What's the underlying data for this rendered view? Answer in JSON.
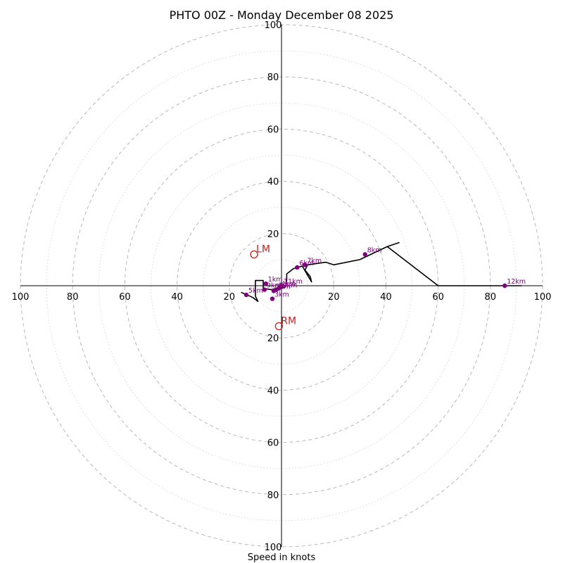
{
  "chart_data": {
    "type": "hodograph",
    "title": "PHTO 00Z - Monday December 08 2025",
    "xlabel": "Speed in knots",
    "max_speed": 100,
    "ring_step": 10,
    "axis_ticks": [
      20,
      40,
      60,
      80,
      100
    ],
    "axis_tick_labels": [
      "20",
      "40",
      "60",
      "80",
      "100"
    ],
    "colors": {
      "hodo_line": "#000000",
      "height_marker": "#800080",
      "storm_motion": "#c41e1e",
      "grid": "#b0b0b0"
    },
    "hodograph_uv": [
      [
        -15.5,
        -2.5
      ],
      [
        -11.0,
        -4.5
      ],
      [
        -9.0,
        -6.0
      ],
      [
        -10.0,
        -4.0
      ],
      [
        -10.0,
        2.0
      ],
      [
        -7.0,
        2.0
      ],
      [
        -7.0,
        -1.0
      ],
      [
        -4.0,
        -1.5
      ],
      [
        -2.0,
        -1.0
      ],
      [
        0.0,
        -1.0
      ],
      [
        1.5,
        -0.5
      ],
      [
        2.0,
        2.0
      ],
      [
        2.0,
        4.5
      ],
      [
        4.5,
        6.5
      ],
      [
        6.0,
        7.0
      ],
      [
        8.0,
        7.5
      ],
      [
        10.0,
        4.0
      ],
      [
        11.5,
        1.5
      ],
      [
        11.0,
        3.5
      ],
      [
        9.0,
        6.0
      ],
      [
        10.0,
        8.0
      ],
      [
        17.0,
        9.0
      ],
      [
        20.0,
        8.0
      ],
      [
        30.0,
        10.0
      ],
      [
        40.5,
        15.0
      ],
      [
        45.0,
        16.5
      ],
      [
        45.0,
        16.5
      ],
      [
        40.5,
        15.0
      ],
      [
        60.0,
        0.0
      ],
      [
        92.0,
        0.0
      ]
    ],
    "height_markers": [
      {
        "label": "1km",
        "u": -6.0,
        "v": 0.8
      },
      {
        "label": "2km",
        "u": -3.0,
        "v": -2.0
      },
      {
        "label": "3km",
        "u": -3.5,
        "v": -5.0
      },
      {
        "label": "4km",
        "u": -1.0,
        "v": -1.0
      },
      {
        "label": "5km",
        "u": -13.5,
        "v": -3.5
      },
      {
        "label": "6km",
        "u": 6.0,
        "v": 7.0
      },
      {
        "label": "7km",
        "u": 9.0,
        "v": 8.0
      },
      {
        "label": "8km",
        "u": 32.0,
        "v": 12.0
      },
      {
        "label": "9km",
        "u": -6.5,
        "v": -1.5
      },
      {
        "label": "10km",
        "u": -2.0,
        "v": -1.5
      },
      {
        "label": "11km",
        "u": 0.0,
        "v": 0.0
      },
      {
        "label": "12km",
        "u": 85.5,
        "v": 0.0
      }
    ],
    "storm_motion": [
      {
        "label": "LM",
        "u": -10.5,
        "v": 12.0
      },
      {
        "label": "RM",
        "u": -1.0,
        "v": -15.5
      }
    ]
  }
}
